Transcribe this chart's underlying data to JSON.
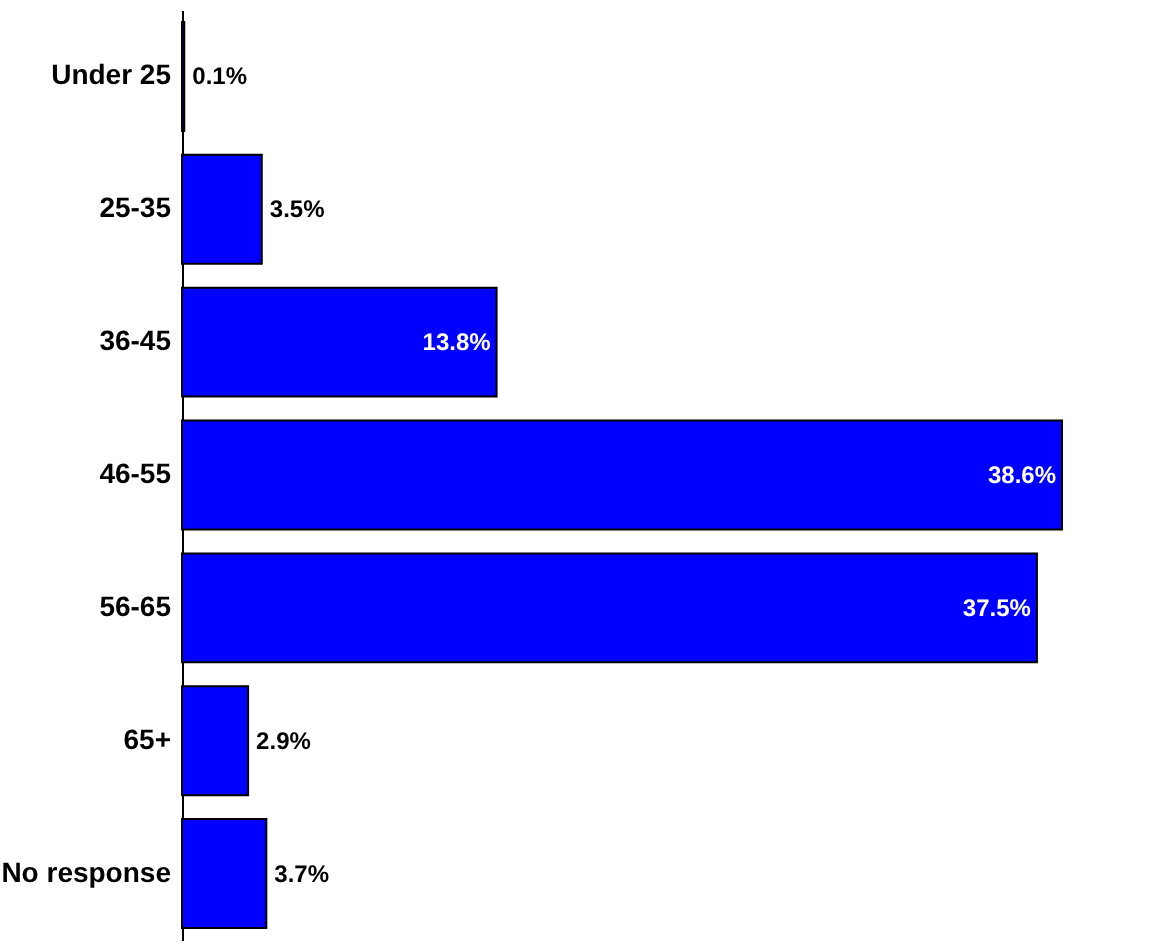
{
  "chart_data": {
    "type": "bar",
    "orientation": "horizontal",
    "categories": [
      "Under 25",
      "25-35",
      "36-45",
      "46-55",
      "56-65",
      "65+",
      "No response"
    ],
    "values": [
      0.1,
      3.5,
      13.8,
      38.6,
      37.5,
      2.9,
      3.7
    ],
    "color": "#0000ff",
    "value_labels": [
      "0.1%",
      "3.5%",
      "13.8%",
      "38.6%",
      "37.5%",
      "2.9%",
      "3.7%"
    ]
  }
}
